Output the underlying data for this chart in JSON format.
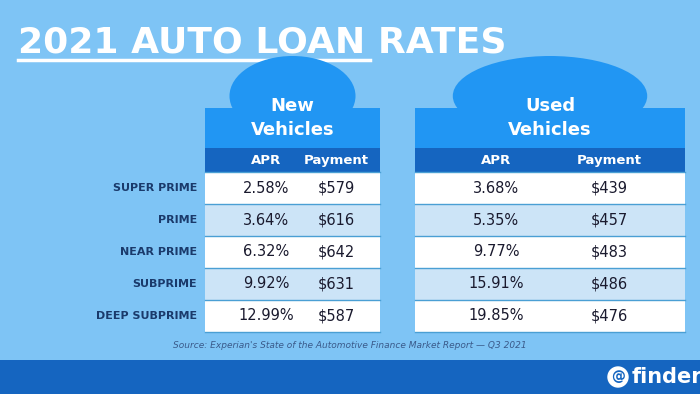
{
  "title": "2021 AUTO LOAN RATES",
  "bg_color": "#7ec4f5",
  "table_bg_light": "#ffffff",
  "table_bg_blue": "#cce4f7",
  "table_header_dark": "#1565c0",
  "table_header_medium": "#2196f3",
  "row_separator_color": "#4a9fd4",
  "row_categories": [
    "SUPER PRIME",
    "PRIME",
    "NEAR PRIME",
    "SUBPRIME",
    "DEEP SUBPRIME"
  ],
  "new_apr": [
    "2.58%",
    "3.64%",
    "6.32%",
    "9.92%",
    "12.99%"
  ],
  "new_payment": [
    "$579",
    "$616",
    "$642",
    "$631",
    "$587"
  ],
  "used_apr": [
    "3.68%",
    "5.35%",
    "9.77%",
    "15.91%",
    "19.85%"
  ],
  "used_payment": [
    "$439",
    "$457",
    "$483",
    "$486",
    "$476"
  ],
  "new_header": "New\nVehicles",
  "used_header": "Used\nVehicles",
  "source_text": "Source: Experian's State of the Automotive Finance Market Report — Q3 2021",
  "footer_color": "#1565c0",
  "footer_text": "finder",
  "title_color": "#ffffff",
  "category_text_color": "#1a3a6b",
  "data_text_color": "#1a1a2e",
  "row_colors": [
    "#ffffff",
    "#cce4f7",
    "#ffffff",
    "#cce4f7",
    "#ffffff"
  ]
}
